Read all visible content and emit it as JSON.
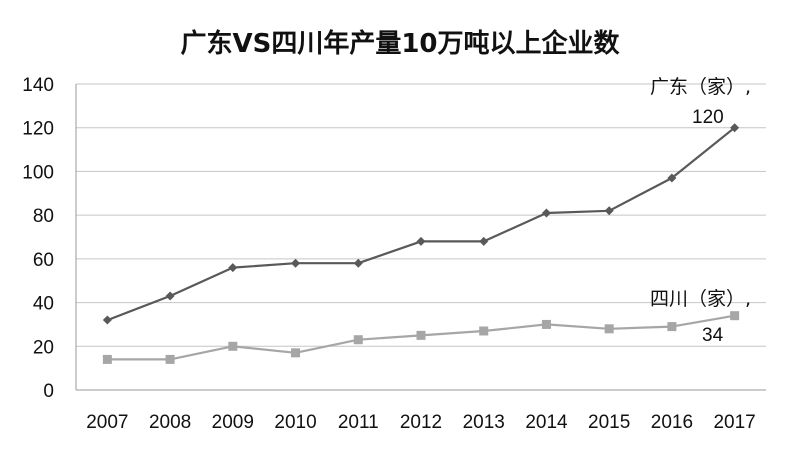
{
  "chart_data": {
    "type": "line",
    "title": "广东VS四川年产量10万吨以上企业数",
    "xlabel": "",
    "ylabel": "",
    "x": [
      "2007",
      "2008",
      "2009",
      "2010",
      "2011",
      "2012",
      "2013",
      "2014",
      "2015",
      "2016",
      "2017"
    ],
    "ylim": [
      0,
      140
    ],
    "yticks": [
      0,
      20,
      40,
      60,
      80,
      100,
      120,
      140
    ],
    "grid": true,
    "legend": "none",
    "series": [
      {
        "name": "广东（家）,",
        "marker": "diamond",
        "color": "#595959",
        "values": [
          32,
          43,
          56,
          58,
          58,
          68,
          68,
          81,
          82,
          97,
          120
        ],
        "end_label": "120"
      },
      {
        "name": "四川（家）,",
        "marker": "square",
        "color": "#a6a6a6",
        "values": [
          14,
          14,
          20,
          17,
          23,
          25,
          27,
          30,
          28,
          29,
          34
        ],
        "end_label": "34"
      }
    ]
  }
}
